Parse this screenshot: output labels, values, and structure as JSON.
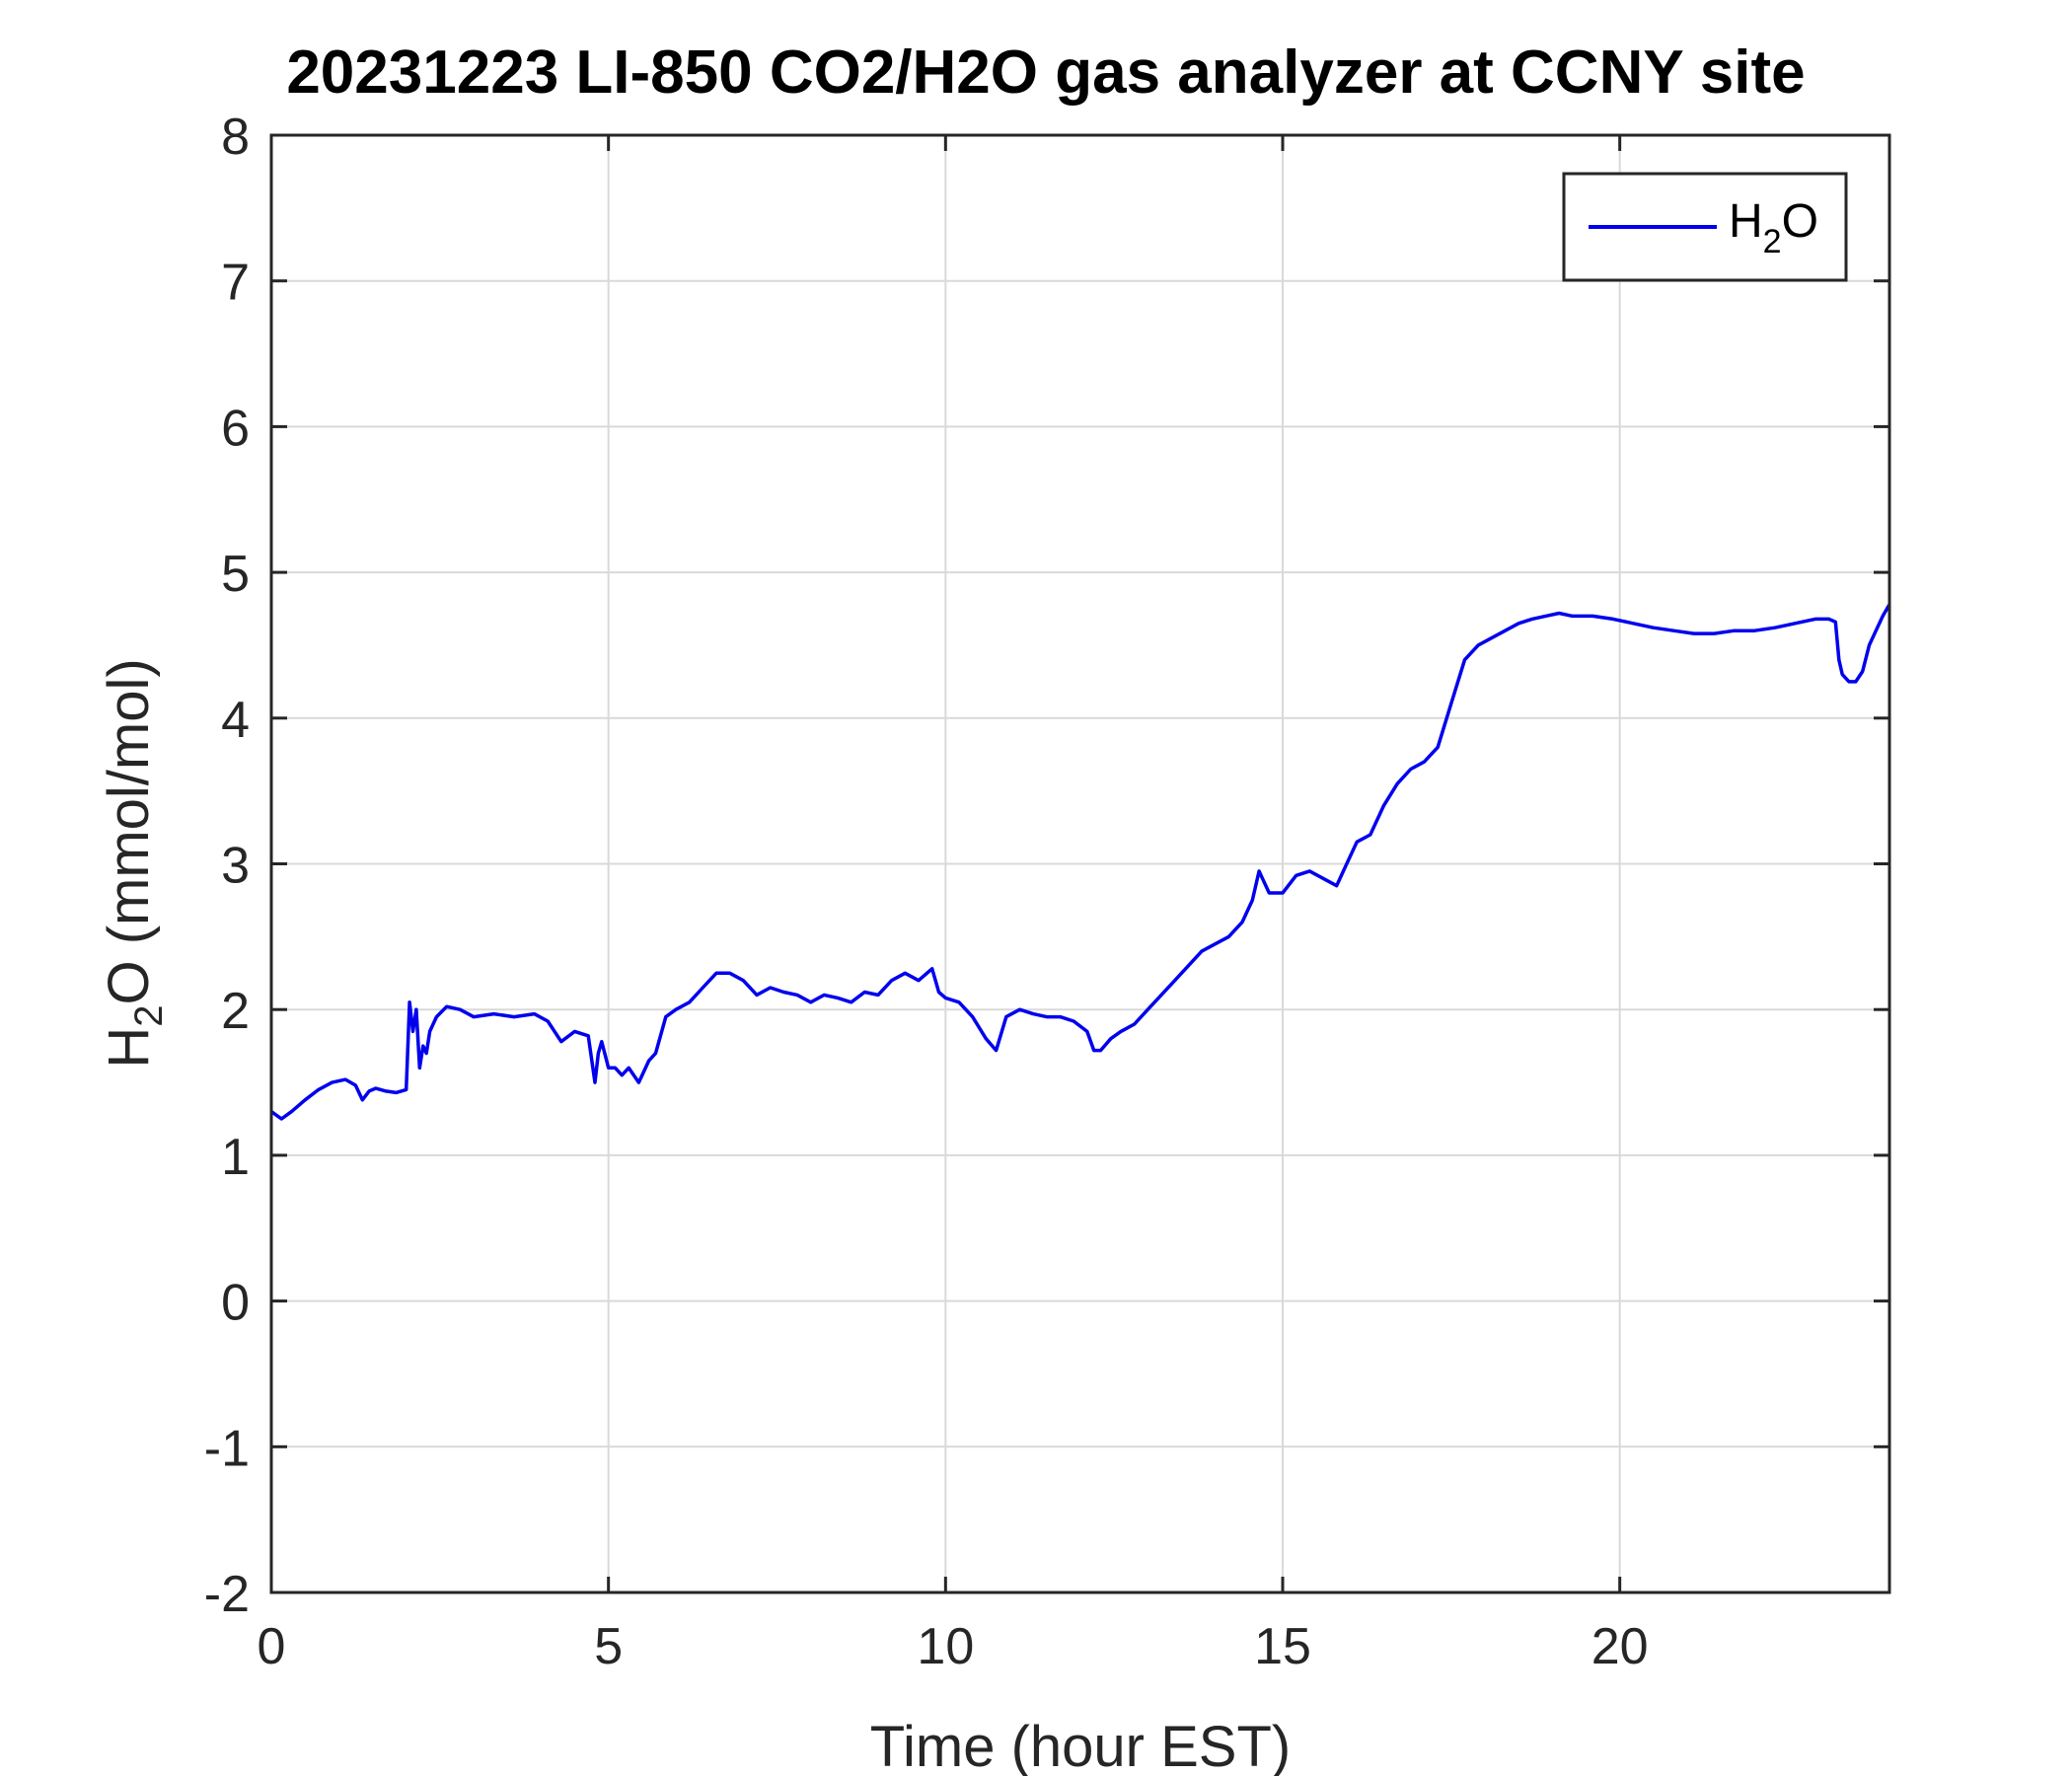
{
  "chart_data": {
    "type": "line",
    "title": "20231223 LI-850 CO2/H2O gas analyzer at CCNY site",
    "xlabel": "Time (hour EST)",
    "ylabel": {
      "base": "H",
      "sub": "2",
      "rest": "O (mmol/mol)"
    },
    "xlim": [
      0,
      24
    ],
    "ylim": [
      -2,
      8
    ],
    "xticks": [
      0,
      5,
      10,
      15,
      20
    ],
    "xtick_labels": [
      "0",
      "5",
      "10",
      "15",
      "20"
    ],
    "yticks": [
      -2,
      -1,
      0,
      1,
      2,
      3,
      4,
      5,
      6,
      7,
      8
    ],
    "ytick_labels": [
      "-2",
      "-1",
      "0",
      "1",
      "2",
      "3",
      "4",
      "5",
      "6",
      "7",
      "8"
    ],
    "grid": true,
    "legend": {
      "position": "top-right",
      "entries": [
        {
          "base": "H",
          "sub": "2",
          "rest": "O"
        }
      ]
    },
    "series": [
      {
        "name": "H2O",
        "color": "#0000ee",
        "x": [
          0,
          0.15,
          0.3,
          0.5,
          0.7,
          0.9,
          1.1,
          1.25,
          1.35,
          1.45,
          1.55,
          1.7,
          1.85,
          2.0,
          2.05,
          2.1,
          2.15,
          2.2,
          2.25,
          2.3,
          2.35,
          2.45,
          2.6,
          2.8,
          3.0,
          3.3,
          3.6,
          3.9,
          4.1,
          4.3,
          4.5,
          4.7,
          4.8,
          4.85,
          4.9,
          5.0,
          5.1,
          5.2,
          5.3,
          5.45,
          5.6,
          5.7,
          5.85,
          6.0,
          6.2,
          6.4,
          6.6,
          6.8,
          7.0,
          7.2,
          7.4,
          7.6,
          7.8,
          8.0,
          8.2,
          8.4,
          8.6,
          8.8,
          9.0,
          9.2,
          9.4,
          9.6,
          9.8,
          9.9,
          10.0,
          10.2,
          10.4,
          10.6,
          10.75,
          10.9,
          11.1,
          11.3,
          11.5,
          11.7,
          11.9,
          12.1,
          12.2,
          12.3,
          12.45,
          12.6,
          12.8,
          13.0,
          13.2,
          13.4,
          13.6,
          13.8,
          14.0,
          14.2,
          14.4,
          14.55,
          14.65,
          14.7,
          14.8,
          15.0,
          15.2,
          15.4,
          15.6,
          15.8,
          15.9,
          16.1,
          16.3,
          16.5,
          16.7,
          16.9,
          17.1,
          17.3,
          17.5,
          17.7,
          17.9,
          18.1,
          18.3,
          18.5,
          18.7,
          18.9,
          19.1,
          19.3,
          19.6,
          19.9,
          20.2,
          20.5,
          20.8,
          21.1,
          21.4,
          21.7,
          22.0,
          22.3,
          22.6,
          22.9,
          23.1,
          23.2,
          23.25,
          23.3,
          23.4,
          23.5,
          23.6,
          23.7,
          23.8,
          23.9,
          24.0
        ],
        "y": [
          1.3,
          1.25,
          1.3,
          1.38,
          1.45,
          1.5,
          1.52,
          1.48,
          1.38,
          1.44,
          1.46,
          1.44,
          1.43,
          1.45,
          2.05,
          1.85,
          2.0,
          1.6,
          1.75,
          1.7,
          1.85,
          1.95,
          2.02,
          2.0,
          1.95,
          1.97,
          1.95,
          1.97,
          1.92,
          1.78,
          1.85,
          1.82,
          1.5,
          1.7,
          1.78,
          1.6,
          1.6,
          1.55,
          1.6,
          1.5,
          1.65,
          1.7,
          1.95,
          2.0,
          2.05,
          2.15,
          2.25,
          2.25,
          2.2,
          2.1,
          2.15,
          2.12,
          2.1,
          2.05,
          2.1,
          2.08,
          2.05,
          2.12,
          2.1,
          2.2,
          2.25,
          2.2,
          2.28,
          2.12,
          2.08,
          2.05,
          1.95,
          1.8,
          1.72,
          1.95,
          2.0,
          1.97,
          1.95,
          1.95,
          1.92,
          1.85,
          1.72,
          1.72,
          1.8,
          1.85,
          1.9,
          2.0,
          2.1,
          2.2,
          2.3,
          2.4,
          2.45,
          2.5,
          2.6,
          2.75,
          2.95,
          2.9,
          2.8,
          2.8,
          2.92,
          2.95,
          2.9,
          2.85,
          2.95,
          3.15,
          3.2,
          3.4,
          3.55,
          3.65,
          3.7,
          3.8,
          4.1,
          4.4,
          4.5,
          4.55,
          4.6,
          4.65,
          4.68,
          4.7,
          4.72,
          4.7,
          4.7,
          4.68,
          4.65,
          4.62,
          4.6,
          4.58,
          4.58,
          4.6,
          4.6,
          4.62,
          4.65,
          4.68,
          4.68,
          4.66,
          4.4,
          4.3,
          4.25,
          4.25,
          4.32,
          4.5,
          4.6,
          4.7,
          4.78
        ]
      }
    ]
  }
}
